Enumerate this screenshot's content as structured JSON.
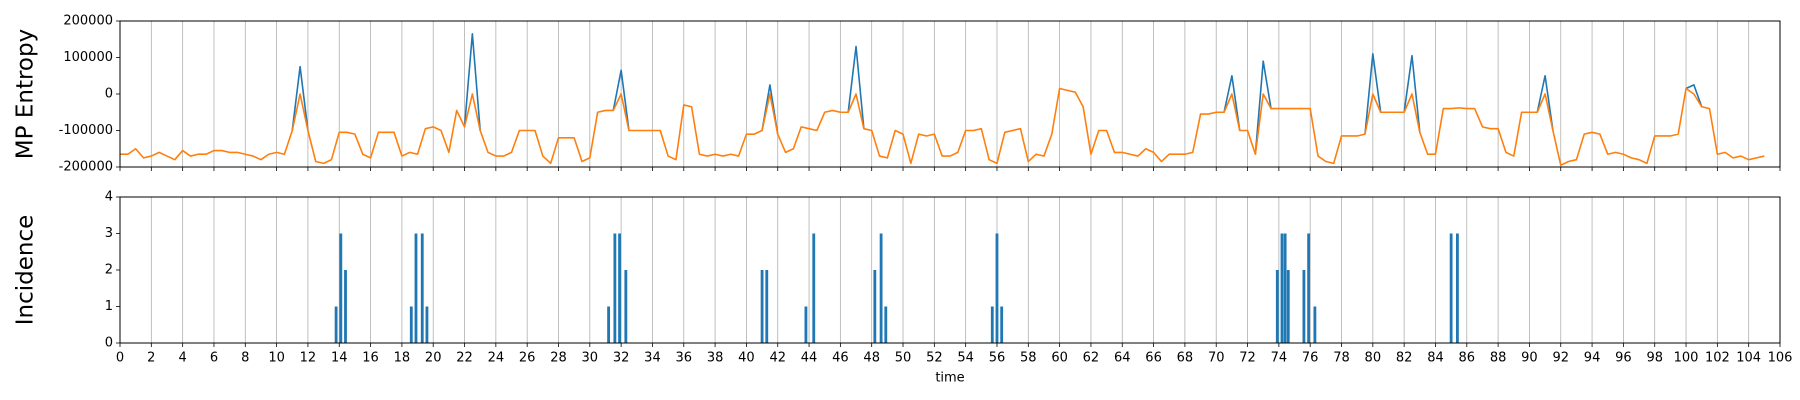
{
  "chart_data": [
    {
      "type": "line",
      "ylabel": "MP Entropy",
      "xlim": [
        0,
        106
      ],
      "ylim": [
        -200000,
        200000
      ],
      "yticks": [
        -200000,
        -100000,
        0,
        100000,
        200000
      ],
      "xticks": [
        0,
        2,
        4,
        6,
        8,
        10,
        12,
        14,
        16,
        18,
        20,
        22,
        24,
        26,
        28,
        30,
        32,
        34,
        36,
        38,
        40,
        42,
        44,
        46,
        48,
        50,
        52,
        54,
        56,
        58,
        60,
        62,
        64,
        66,
        68,
        70,
        72,
        74,
        76,
        78,
        80,
        82,
        84,
        86,
        88,
        90,
        92,
        94,
        96,
        98,
        100,
        102,
        104,
        106
      ],
      "grid": true,
      "x": [
        0,
        0.5,
        1,
        1.5,
        2,
        2.5,
        3,
        3.5,
        4,
        4.5,
        5,
        5.5,
        6,
        6.5,
        7,
        7.5,
        8,
        8.5,
        9,
        9.5,
        10,
        10.5,
        11,
        11.5,
        12,
        12.5,
        13,
        13.5,
        14,
        14.5,
        15,
        15.5,
        16,
        16.5,
        17,
        17.5,
        18,
        18.5,
        19,
        19.5,
        20,
        20.5,
        21,
        21.5,
        22,
        22.5,
        23,
        23.5,
        24,
        24.5,
        25,
        25.5,
        26,
        26.5,
        27,
        27.5,
        28,
        28.5,
        29,
        29.5,
        30,
        30.5,
        31,
        31.5,
        32,
        32.5,
        33,
        33.5,
        34,
        34.5,
        35,
        35.5,
        36,
        36.5,
        37,
        37.5,
        38,
        38.5,
        39,
        39.5,
        40,
        40.5,
        41,
        41.5,
        42,
        42.5,
        43,
        43.5,
        44,
        44.5,
        45,
        45.5,
        46,
        46.5,
        47,
        47.5,
        48,
        48.5,
        49,
        49.5,
        50,
        50.5,
        51,
        51.5,
        52,
        52.5,
        53,
        53.5,
        54,
        54.5,
        55,
        55.5,
        56,
        56.5,
        57,
        57.5,
        58,
        58.5,
        59,
        59.5,
        60,
        60.5,
        61,
        61.5,
        62,
        62.5,
        63,
        63.5,
        64,
        64.5,
        65,
        65.5,
        66,
        66.5,
        67,
        67.5,
        68,
        68.5,
        69,
        69.5,
        70,
        70.5,
        71,
        71.5,
        72,
        72.5,
        73,
        73.5,
        74,
        74.5,
        75,
        75.5,
        76,
        76.5,
        77,
        77.5,
        78,
        78.5,
        79,
        79.5,
        80,
        80.5,
        81,
        81.5,
        82,
        82.5,
        83,
        83.5,
        84,
        84.5,
        85,
        85.5,
        86,
        86.5,
        87,
        87.5,
        88,
        88.5,
        89,
        89.5,
        90,
        90.5,
        91,
        91.5,
        92,
        92.5,
        93,
        93.5,
        94,
        94.5,
        95,
        95.5,
        96,
        96.5,
        97,
        97.5,
        98,
        98.5,
        99,
        99.5,
        100,
        100.5,
        101,
        101.5,
        102,
        102.5,
        103,
        103.5,
        104,
        104.5,
        105
      ],
      "series": [
        {
          "color": "#1f77b4",
          "x": [
            11,
            11.5,
            12,
            null,
            22,
            22.5,
            23,
            null,
            31.5,
            32,
            32.5,
            null,
            41,
            41.5,
            42,
            null,
            46.5,
            47,
            47.5,
            null,
            70.5,
            71,
            71.5,
            null,
            72.5,
            73,
            73.5,
            null,
            79.5,
            80,
            80.5,
            null,
            82,
            82.5,
            83,
            null,
            90.5,
            91,
            91.5,
            null,
            100,
            100.5,
            101
          ],
          "values": [
            -100000,
            75000,
            -100000,
            null,
            -90000,
            165000,
            -100000,
            null,
            -45000,
            65000,
            -100000,
            null,
            -100000,
            25000,
            -110000,
            null,
            -50000,
            130000,
            -95000,
            null,
            -50000,
            50000,
            -100000,
            null,
            -165000,
            90000,
            -40000,
            null,
            -110000,
            110000,
            -50000,
            null,
            -50000,
            105000,
            -105000,
            null,
            -50000,
            50000,
            -100000,
            null,
            15000,
            25000,
            -35000
          ]
        },
        {
          "color": "#ff7f0e",
          "values": [
            -165000,
            -165000,
            -150000,
            -175000,
            -170000,
            -160000,
            -170000,
            -180000,
            -155000,
            -170000,
            -165000,
            -165000,
            -155000,
            -155000,
            -160000,
            -160000,
            -165000,
            -170000,
            -180000,
            -165000,
            -160000,
            -165000,
            -100000,
            0,
            -100000,
            -185000,
            -190000,
            -180000,
            -105000,
            -105000,
            -110000,
            -165000,
            -175000,
            -105000,
            -105000,
            -105000,
            -170000,
            -160000,
            -165000,
            -95000,
            -90000,
            -100000,
            -160000,
            -45000,
            -90000,
            0,
            -100000,
            -160000,
            -170000,
            -170000,
            -160000,
            -100000,
            -100000,
            -100000,
            -170000,
            -190000,
            -120000,
            -120000,
            -120000,
            -185000,
            -175000,
            -50000,
            -45000,
            -45000,
            0,
            -100000,
            -100000,
            -100000,
            -100000,
            -100000,
            -170000,
            -180000,
            -30000,
            -35000,
            -165000,
            -170000,
            -165000,
            -170000,
            -165000,
            -170000,
            -110000,
            -110000,
            -100000,
            0,
            -110000,
            -160000,
            -150000,
            -90000,
            -95000,
            -100000,
            -50000,
            -45000,
            -50000,
            -50000,
            0,
            -95000,
            -100000,
            -170000,
            -175000,
            -100000,
            -110000,
            -190000,
            -110000,
            -115000,
            -110000,
            -170000,
            -170000,
            -160000,
            -100000,
            -100000,
            -95000,
            -180000,
            -190000,
            -105000,
            -100000,
            -95000,
            -185000,
            -165000,
            -170000,
            -110000,
            15000,
            10000,
            5000,
            -35000,
            -165000,
            -100000,
            -100000,
            -160000,
            -160000,
            -165000,
            -170000,
            -150000,
            -160000,
            -185000,
            -165000,
            -165000,
            -165000,
            -160000,
            -55000,
            -55000,
            -50000,
            -50000,
            0,
            -100000,
            -100000,
            -165000,
            0,
            -40000,
            -40000,
            -40000,
            -40000,
            -40000,
            -40000,
            -170000,
            -185000,
            -190000,
            -115000,
            -115000,
            -115000,
            -110000,
            0,
            -50000,
            -50000,
            -50000,
            -50000,
            0,
            -105000,
            -165000,
            -165000,
            -40000,
            -40000,
            -38000,
            -40000,
            -40000,
            -90000,
            -95000,
            -95000,
            -160000,
            -170000,
            -50000,
            -50000,
            -50000,
            0,
            -100000,
            -195000,
            -185000,
            -180000,
            -110000,
            -105000,
            -110000,
            -165000,
            -160000,
            -165000,
            -175000,
            -180000,
            -190000,
            -115000,
            -115000,
            -115000,
            -110000,
            15000,
            0,
            -35000,
            -40000,
            -165000,
            -160000,
            -175000,
            -170000,
            -180000,
            -175000,
            -170000
          ]
        }
      ]
    },
    {
      "type": "bar",
      "ylabel": "Incidence",
      "xlabel": "time",
      "xlim": [
        0,
        106
      ],
      "ylim": [
        0,
        4
      ],
      "yticks": [
        0,
        1,
        2,
        3,
        4
      ],
      "xticks": [
        0,
        2,
        4,
        6,
        8,
        10,
        12,
        14,
        16,
        18,
        20,
        22,
        24,
        26,
        28,
        30,
        32,
        34,
        36,
        38,
        40,
        42,
        44,
        46,
        48,
        50,
        52,
        54,
        56,
        58,
        60,
        62,
        64,
        66,
        68,
        70,
        72,
        74,
        76,
        78,
        80,
        82,
        84,
        86,
        88,
        90,
        92,
        94,
        96,
        98,
        100,
        102,
        104,
        106
      ],
      "grid": true,
      "color": "#1f77b4",
      "x": [
        13.8,
        14.1,
        14.4,
        18.6,
        18.9,
        19.3,
        19.6,
        31.2,
        31.6,
        31.9,
        32.3,
        41.0,
        41.3,
        43.8,
        44.3,
        48.2,
        48.6,
        48.9,
        55.7,
        56.0,
        56.3,
        73.9,
        74.2,
        74.4,
        74.6,
        75.6,
        75.9,
        76.3,
        85.0,
        85.4
      ],
      "values": [
        1,
        3,
        2,
        1,
        3,
        3,
        1,
        1,
        3,
        3,
        2,
        2,
        2,
        1,
        3,
        2,
        3,
        1,
        1,
        3,
        1,
        2,
        3,
        3,
        2,
        2,
        3,
        1,
        3,
        3
      ]
    }
  ]
}
